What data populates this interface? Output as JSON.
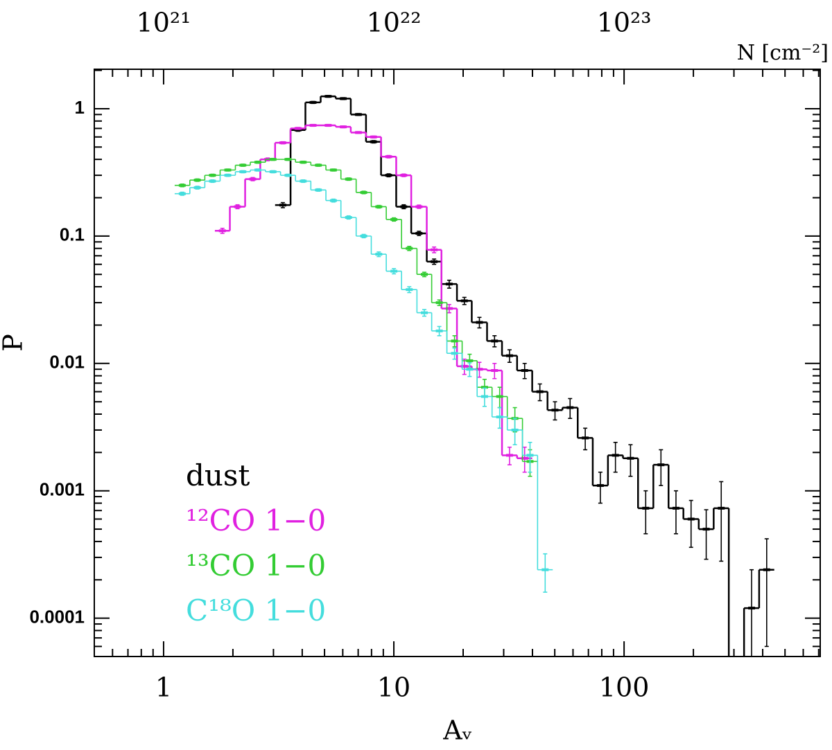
{
  "chart_data": {
    "type": "histogram",
    "xlabel": "Aᵥ",
    "ylabel": "P",
    "x2label": "N [cm⁻²]",
    "xscale": "log",
    "yscale": "log",
    "xlim": [
      0.5,
      711
    ],
    "ylim": [
      5e-05,
      2.04
    ],
    "xticks": [
      1,
      10,
      100
    ],
    "yticks": [
      0.0001,
      0.001,
      0.01,
      0.1,
      1
    ],
    "x2lim": [
      5e+20,
      7.11e+23
    ],
    "x2ticks": [
      {
        "value": 1e+21,
        "label": "10²¹"
      },
      {
        "value": 1e+22,
        "label": "10²²"
      },
      {
        "value": 1e+23,
        "label": "10²³"
      }
    ],
    "minor_ticks": true,
    "legend": "lower left",
    "series": [
      {
        "name": "dust",
        "color": "#000000",
        "bins": [
          3.05,
          3.56,
          4.13,
          4.81,
          5.59,
          6.5,
          7.57,
          8.8,
          10.24,
          11.9,
          13.9,
          16.1,
          18.8,
          21.8,
          25.4,
          29.5,
          34.3,
          39.9,
          46.5,
          54.0,
          62.9,
          73.1,
          85.1,
          98.9,
          115,
          134,
          156,
          181,
          211,
          245,
          285,
          332,
          386,
          449
        ],
        "values": [
          0.175,
          0.68,
          1.12,
          1.25,
          1.2,
          0.9,
          0.55,
          0.3,
          0.17,
          0.105,
          0.063,
          0.042,
          0.031,
          0.021,
          0.015,
          0.0115,
          0.0088,
          0.006,
          0.0043,
          0.0045,
          0.0026,
          0.0011,
          0.0019,
          0.0018,
          0.00073,
          0.0016,
          0.00073,
          0.0006,
          0.0005,
          0.00073,
          null,
          0.00012,
          0.00024
        ],
        "errors": [
          0.008,
          0.015,
          0.02,
          0.02,
          0.02,
          0.015,
          0.012,
          0.008,
          0.006,
          0.004,
          0.003,
          0.003,
          0.002,
          0.002,
          0.0015,
          0.0013,
          0.0012,
          0.0009,
          0.0007,
          0.0008,
          0.0005,
          0.0003,
          0.0005,
          0.0005,
          0.00027,
          0.0005,
          0.00027,
          0.00024,
          0.00021,
          0.00045,
          null,
          0.00012,
          0.00018
        ]
      },
      {
        "name": "¹²CO 1−0",
        "color": "#e020e0",
        "bins": [
          1.67,
          1.94,
          2.26,
          2.63,
          3.05,
          3.56,
          4.13,
          4.81,
          5.59,
          6.5,
          7.57,
          8.8,
          10.24,
          11.9,
          13.9,
          16.1,
          18.8,
          21.8,
          25.4,
          29.5,
          34.3,
          39.9
        ],
        "values": [
          0.11,
          0.17,
          0.28,
          0.4,
          0.54,
          0.7,
          0.74,
          0.74,
          0.72,
          0.65,
          0.6,
          0.42,
          0.3,
          0.17,
          0.078,
          0.027,
          0.0095,
          0.009,
          0.0088,
          0.0019,
          0.0018
        ],
        "errors": [
          0.005,
          0.006,
          0.008,
          0.01,
          0.01,
          0.012,
          0.012,
          0.012,
          0.011,
          0.01,
          0.01,
          0.009,
          0.007,
          0.005,
          0.004,
          0.002,
          0.0013,
          0.0012,
          0.0012,
          0.0003,
          0.0004
        ]
      },
      {
        "name": "¹³CO 1−0",
        "color": "#33cc33",
        "bins": [
          1.117,
          1.3,
          1.51,
          1.76,
          2.05,
          2.38,
          2.77,
          3.22,
          3.74,
          4.36,
          5.07,
          5.89,
          6.86,
          7.98,
          9.27,
          10.8,
          12.6,
          14.6,
          17.0,
          19.8,
          23.0,
          26.7,
          31.1,
          36.2,
          42.1
        ],
        "values": [
          0.25,
          0.275,
          0.3,
          0.33,
          0.36,
          0.38,
          0.4,
          0.4,
          0.38,
          0.36,
          0.33,
          0.28,
          0.22,
          0.17,
          0.135,
          0.08,
          0.05,
          0.03,
          0.015,
          0.0105,
          0.0065,
          0.0055,
          0.0037,
          0.0017
        ],
        "errors": [
          0.006,
          0.006,
          0.006,
          0.006,
          0.007,
          0.007,
          0.007,
          0.007,
          0.007,
          0.007,
          0.006,
          0.006,
          0.005,
          0.004,
          0.004,
          0.003,
          0.002,
          0.0015,
          0.0015,
          0.0013,
          0.001,
          0.001,
          0.0008,
          0.0004
        ]
      },
      {
        "name": "C¹⁸O 1−0",
        "color": "#44dddd",
        "bins": [
          1.117,
          1.3,
          1.51,
          1.76,
          2.05,
          2.38,
          2.77,
          3.22,
          3.74,
          4.36,
          5.07,
          5.89,
          6.86,
          7.98,
          9.27,
          10.8,
          12.6,
          14.6,
          17.0,
          19.8,
          23.0,
          26.7,
          31.1,
          36.2,
          42.1,
          49.0
        ],
        "values": [
          0.215,
          0.24,
          0.27,
          0.3,
          0.32,
          0.33,
          0.32,
          0.3,
          0.27,
          0.23,
          0.19,
          0.14,
          0.1,
          0.072,
          0.053,
          0.038,
          0.025,
          0.018,
          0.012,
          0.009,
          0.0055,
          0.0038,
          0.003,
          0.0019,
          0.00024
        ],
        "errors": [
          0.006,
          0.006,
          0.006,
          0.006,
          0.006,
          0.006,
          0.006,
          0.006,
          0.006,
          0.005,
          0.005,
          0.004,
          0.003,
          0.003,
          0.0025,
          0.002,
          0.0015,
          0.0015,
          0.0012,
          0.0011,
          0.0009,
          0.0007,
          0.0007,
          0.0005,
          8e-05
        ]
      }
    ]
  }
}
